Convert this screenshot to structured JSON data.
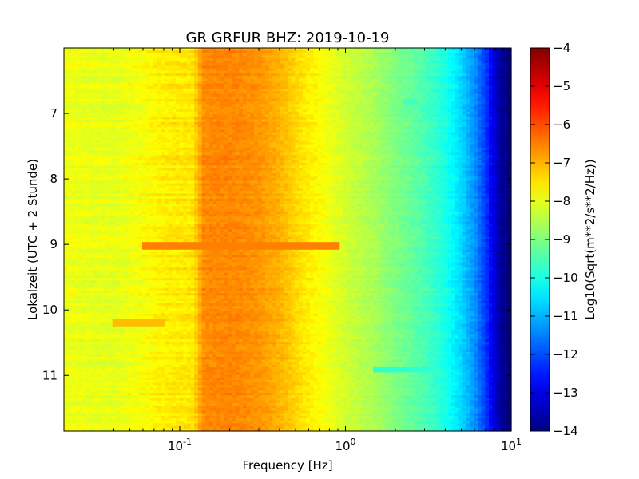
{
  "chart_data": {
    "type": "heatmap",
    "title": "GR GRFUR BHZ: 2019-10-19",
    "xlabel": "Frequency [Hz]",
    "ylabel": "Lokalzeit (UTC + 2 Stunde)",
    "x_scale": "log",
    "xlim": [
      0.02,
      10
    ],
    "ylim": [
      11.85,
      6.0
    ],
    "x_ticks": [
      {
        "value": 0.1,
        "base": "10",
        "exp": "-1"
      },
      {
        "value": 1,
        "base": "10",
        "exp": "0"
      },
      {
        "value": 10,
        "base": "10",
        "exp": "1"
      }
    ],
    "y_ticks": [
      7,
      8,
      9,
      10,
      11
    ],
    "colorbar": {
      "label": "Log10(Sqrt(m**2/s**2/Hz))",
      "colormap": "jet",
      "range": [
        -14,
        -4
      ],
      "ticks": [
        -4,
        -5,
        -6,
        -7,
        -8,
        -9,
        -10,
        -11,
        -12,
        -13,
        -14
      ]
    },
    "spectrum_profile": {
      "frequency_hz": [
        0.02,
        0.04,
        0.06,
        0.08,
        0.12,
        0.14,
        0.2,
        0.3,
        0.4,
        0.55,
        0.8,
        1.0,
        1.5,
        2.0,
        3.0,
        4.0,
        5.0,
        6.0,
        7.0,
        8.0,
        9.0,
        10.0
      ],
      "log10_amplitude": [
        -7.9,
        -8.0,
        -7.8,
        -7.6,
        -7.5,
        -6.6,
        -6.55,
        -6.7,
        -7.0,
        -7.5,
        -7.9,
        -8.2,
        -8.6,
        -9.0,
        -9.5,
        -10.0,
        -10.6,
        -11.3,
        -12.2,
        -13.2,
        -13.9,
        -14.0
      ]
    },
    "features": [
      {
        "time": 9.02,
        "freq_range": [
          0.06,
          0.9
        ],
        "log10_amplitude": -6.5
      },
      {
        "time": 10.2,
        "freq_range": [
          0.04,
          0.08
        ],
        "log10_amplitude": -7.1
      },
      {
        "time": 6.82,
        "freq_range": [
          2.2,
          2.7
        ],
        "log10_amplitude": -9.6
      },
      {
        "time": 10.92,
        "freq_range": [
          1.5,
          3.4
        ],
        "log10_amplitude": -9.8
      }
    ]
  }
}
